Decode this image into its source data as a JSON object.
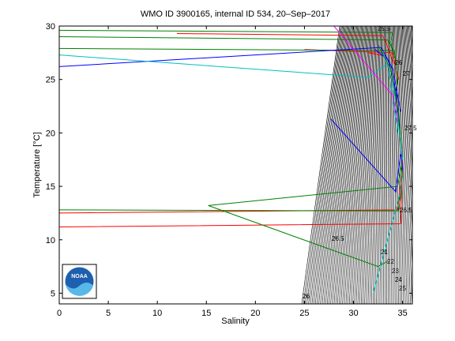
{
  "chart_data": {
    "type": "line",
    "title": "WMO ID 3900165, internal ID 534, 20–Sep–2017",
    "xlabel": "Salinity",
    "ylabel": "Temperature [°C]",
    "xlim": [
      0,
      36
    ],
    "ylim": [
      4,
      30
    ],
    "xticks": [
      "0",
      "5",
      "10",
      "15",
      "20",
      "25",
      "30",
      "35"
    ],
    "yticks": [
      "5",
      "10",
      "15",
      "20",
      "25",
      "30"
    ],
    "grid": false,
    "logo_text": "NOAA",
    "density_labels": [
      "25.5",
      "26",
      "27",
      "27.5",
      "26.5",
      "26.5",
      "21",
      "22",
      "23",
      "24",
      "25",
      "26"
    ],
    "series": [
      {
        "color": "#008000",
        "x": [
          0,
          34,
          33.8,
          34.2
        ],
        "y": [
          29.6,
          29.4,
          28.5,
          27.0
        ]
      },
      {
        "color": "#008000",
        "x": [
          0,
          33.5,
          34.0
        ],
        "y": [
          29.0,
          28.7,
          27.8
        ]
      },
      {
        "color": "#ff0000",
        "x": [
          12,
          33,
          33.5,
          34.1
        ],
        "y": [
          29.3,
          29.1,
          28.0,
          26.5
        ]
      },
      {
        "color": "#ff0000",
        "x": [
          25,
          34,
          34.6
        ],
        "y": [
          27.8,
          27.5,
          25.0
        ]
      },
      {
        "color": "#008000",
        "x": [
          0,
          34.2,
          34.5
        ],
        "y": [
          27.9,
          27.7,
          24.5
        ]
      },
      {
        "color": "#0000ff",
        "x": [
          0,
          32.8,
          34.0,
          34.8
        ],
        "y": [
          26.2,
          28.0,
          26.0,
          22.0
        ]
      },
      {
        "color": "#00bfbf",
        "x": [
          0,
          31.5,
          33.5,
          34.5
        ],
        "y": [
          27.3,
          25.2,
          26.5,
          20.0
        ]
      },
      {
        "color": "#ff0000",
        "x": [
          0,
          34.5,
          34.9
        ],
        "y": [
          12.5,
          12.8,
          16.0
        ]
      },
      {
        "color": "#ff0000",
        "x": [
          0,
          34.8,
          35.0
        ],
        "y": [
          11.2,
          11.5,
          17.0
        ]
      },
      {
        "color": "#008000",
        "x": [
          0,
          34.6,
          34.9,
          35.0
        ],
        "y": [
          12.8,
          12.7,
          15.0,
          18.0
        ]
      },
      {
        "color": "#008000",
        "x": [
          15.2,
          34.5,
          35.0
        ],
        "y": [
          13.2,
          15.0,
          17.5
        ]
      },
      {
        "color": "#008000",
        "x": [
          15.2,
          32.5,
          33.5
        ],
        "y": [
          13.2,
          7.5,
          8.0
        ]
      },
      {
        "color": "#00bfbf",
        "x": [
          32.0,
          34.8,
          35.0
        ],
        "y": [
          5.0,
          14.5,
          16.0
        ]
      },
      {
        "color": "#0000ff",
        "x": [
          27.7,
          34.3,
          34.8
        ],
        "y": [
          21.3,
          14.5,
          18.0
        ]
      },
      {
        "color": "#ff00ff",
        "x": [
          28.0,
          34.0,
          34.5
        ],
        "y": [
          30.0,
          23.5,
          21.0
        ]
      },
      {
        "color": "#ff0000",
        "x": [
          31.5,
          33.2,
          34.2,
          34.7,
          35.0
        ],
        "y": [
          27.5,
          27.2,
          24.0,
          20.0,
          17.0
        ]
      },
      {
        "color": "#0000ff",
        "x": [
          32.2,
          33.6,
          34.4,
          34.8,
          35.0
        ],
        "y": [
          27.8,
          26.8,
          23.5,
          19.5,
          16.5
        ]
      },
      {
        "color": "#008000",
        "x": [
          32.5,
          33.8,
          34.6,
          34.9
        ],
        "y": [
          28.2,
          26.0,
          22.0,
          18.5
        ]
      },
      {
        "color": "#00bfbf",
        "x": [
          33.0,
          34.0,
          34.5,
          35.0
        ],
        "y": [
          27.6,
          24.8,
          21.5,
          17.5
        ]
      }
    ]
  }
}
